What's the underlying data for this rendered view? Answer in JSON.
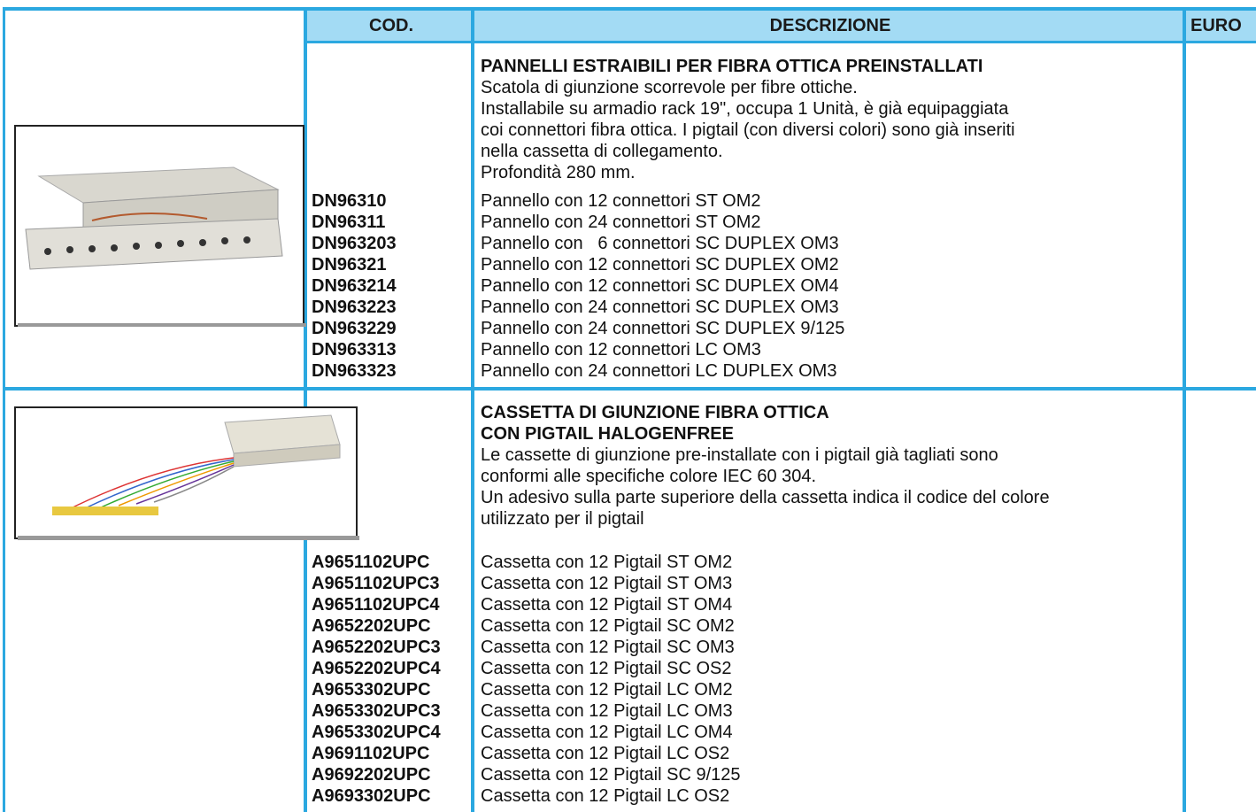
{
  "header": {
    "code": "COD.",
    "description": "DESCRIZIONE",
    "price": "EURO"
  },
  "sections": [
    {
      "title": [
        "PANNELLI ESTRAIBILI PER FIBRA OTTICA PREINSTALLATI"
      ],
      "description": [
        "Scatola di giunzione scorrevole per fibre ottiche.",
        "Installabile su armadio rack 19\", occupa 1 Unità, è già equipaggiata",
        "coi connettori fibra ottica. I pigtail (con diversi colori) sono già inseriti",
        "nella cassetta di collegamento.",
        "Profondità 280 mm."
      ],
      "items": [
        {
          "code": "DN96310",
          "description": "Pannello con 12 connettori ST OM2"
        },
        {
          "code": "DN96311",
          "description": "Pannello con 24 connettori ST OM2"
        },
        {
          "code": "DN963203",
          "description": "Pannello con   6 connettori SC DUPLEX OM3"
        },
        {
          "code": "DN96321",
          "description": "Pannello con 12 connettori SC DUPLEX OM2"
        },
        {
          "code": "DN963214",
          "description": "Pannello con 12 connettori SC DUPLEX OM4"
        },
        {
          "code": "DN963223",
          "description": "Pannello con 24 connettori SC DUPLEX OM3"
        },
        {
          "code": "DN963229",
          "description": "Pannello con 24 connettori SC DUPLEX 9/125"
        },
        {
          "code": "DN963313",
          "description": "Pannello con 12 connettori LC OM3"
        },
        {
          "code": "DN963323",
          "description": "Pannello con 24 connettori LC DUPLEX OM3"
        }
      ]
    },
    {
      "title": [
        "CASSETTA DI GIUNZIONE FIBRA OTTICA",
        "CON PIGTAIL HALOGENFREE"
      ],
      "description": [
        "Le cassette di giunzione pre-installate con i pigtail già tagliati sono",
        "conformi alle specifiche colore IEC 60 304.",
        "Un adesivo sulla parte superiore della cassetta indica il codice del colore",
        "utilizzato per il pigtail"
      ],
      "items": [
        {
          "code": "A9651102UPC",
          "description": "Cassetta con 12 Pigtail ST OM2"
        },
        {
          "code": "A9651102UPC3",
          "description": "Cassetta con 12 Pigtail ST OM3"
        },
        {
          "code": "A9651102UPC4",
          "description": "Cassetta con 12 Pigtail ST OM4"
        },
        {
          "code": "A9652202UPC",
          "description": "Cassetta con 12 Pigtail SC OM2"
        },
        {
          "code": "A9652202UPC3",
          "description": "Cassetta con 12 Pigtail SC OM3"
        },
        {
          "code": "A9652202UPC4",
          "description": "Cassetta con 12 Pigtail SC OS2"
        },
        {
          "code": "A9653302UPC",
          "description": "Cassetta con 12 Pigtail LC OM2"
        },
        {
          "code": "A9653302UPC3",
          "description": "Cassetta con 12 Pigtail LC OM3"
        },
        {
          "code": "A9653302UPC4",
          "description": "Cassetta con 12 Pigtail LC OM4"
        },
        {
          "code": "A9691102UPC",
          "description": "Cassetta con 12 Pigtail LC OS2"
        },
        {
          "code": "A9692202UPC",
          "description": "Cassetta con 12 Pigtail SC 9/125"
        },
        {
          "code": "A9693302UPC",
          "description": "Cassetta con 12 Pigtail LC OS2"
        }
      ]
    }
  ]
}
